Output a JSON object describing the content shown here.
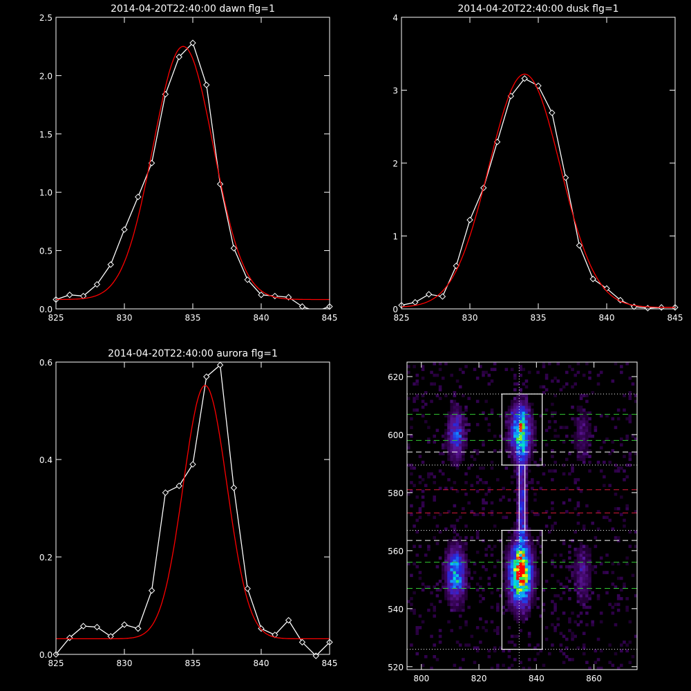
{
  "chart_data": [
    {
      "type": "line",
      "title": "2014-04-20T22:40:00 dawn flg=1",
      "xlim": [
        825,
        845
      ],
      "ylim": [
        0,
        2.5
      ],
      "xticks": [
        "825",
        "830",
        "835",
        "840",
        "845"
      ],
      "yticks": [
        "0.0",
        "0.5",
        "1.0",
        "1.5",
        "2.0",
        "2.5"
      ],
      "series": [
        {
          "color": "#ffffff",
          "markers": true,
          "x": [
            825,
            826,
            827,
            828,
            829,
            830,
            831,
            832,
            833,
            834,
            835,
            836,
            837,
            838,
            839,
            840,
            841,
            842,
            843,
            844,
            845
          ],
          "y": [
            0.08,
            0.12,
            0.11,
            0.21,
            0.38,
            0.68,
            0.96,
            1.25,
            1.84,
            2.16,
            2.28,
            1.92,
            1.07,
            0.52,
            0.25,
            0.12,
            0.11,
            0.1,
            0.02,
            -0.02,
            0.02
          ]
        },
        {
          "color": "#ff0000",
          "markers": false,
          "fit": "gaussian",
          "params": {
            "amp": 2.17,
            "center": 834.3,
            "sigma": 2.2,
            "baseline": 0.08
          }
        }
      ]
    },
    {
      "type": "line",
      "title": "2014-04-20T22:40:00 dusk flg=1",
      "xlim": [
        825,
        845
      ],
      "ylim": [
        0,
        4
      ],
      "xticks": [
        "825",
        "830",
        "835",
        "840",
        "845"
      ],
      "yticks": [
        "0",
        "1",
        "2",
        "3",
        "4"
      ],
      "series": [
        {
          "color": "#ffffff",
          "markers": true,
          "x": [
            825,
            826,
            827,
            828,
            829,
            830,
            831,
            832,
            833,
            834,
            835,
            836,
            837,
            838,
            839,
            840,
            841,
            842,
            843,
            844,
            845
          ],
          "y": [
            0.05,
            0.09,
            0.2,
            0.17,
            0.59,
            1.22,
            1.66,
            2.29,
            2.92,
            3.16,
            3.06,
            2.69,
            1.8,
            0.87,
            0.41,
            0.28,
            0.12,
            0.03,
            0.01,
            0.02,
            0.02
          ]
        },
        {
          "color": "#ff0000",
          "markers": false,
          "fit": "gaussian",
          "params": {
            "amp": 3.2,
            "center": 834.0,
            "sigma": 2.6,
            "baseline": 0.02
          }
        }
      ]
    },
    {
      "type": "line",
      "title": "2014-04-20T22:40:00 aurora flg=1",
      "xlim": [
        825,
        845
      ],
      "ylim": [
        0,
        0.6
      ],
      "xticks": [
        "825",
        "830",
        "835",
        "840",
        "845"
      ],
      "yticks": [
        "0.0",
        "0.2",
        "0.4",
        "0.6"
      ],
      "series": [
        {
          "color": "#ffffff",
          "markers": true,
          "x": [
            825,
            826,
            827,
            828,
            829,
            830,
            831,
            832,
            833,
            834,
            835,
            836,
            837,
            838,
            839,
            840,
            841,
            842,
            843,
            844,
            845
          ],
          "y": [
            0.0,
            0.034,
            0.058,
            0.056,
            0.037,
            0.061,
            0.053,
            0.131,
            0.332,
            0.346,
            0.39,
            0.57,
            0.594,
            0.342,
            0.135,
            0.053,
            0.04,
            0.07,
            0.025,
            -0.003,
            0.025
          ]
        },
        {
          "color": "#ff0000",
          "markers": false,
          "fit": "gaussian",
          "params": {
            "amp": 0.52,
            "center": 835.9,
            "sigma": 1.6,
            "baseline": 0.032
          }
        }
      ]
    },
    {
      "type": "heatmap",
      "title": "",
      "xlim": [
        795,
        875
      ],
      "ylim": [
        519,
        625
      ],
      "xticks": [
        "800",
        "820",
        "840",
        "860"
      ],
      "yticks": [
        "520",
        "540",
        "560",
        "580",
        "600",
        "620"
      ],
      "blobs": [
        {
          "x": 834.5,
          "y": 552,
          "sx": 2.6,
          "sy": 7,
          "amp": 1.0
        },
        {
          "x": 834.5,
          "y": 601,
          "sx": 2.4,
          "sy": 6,
          "amp": 0.72
        },
        {
          "x": 812,
          "y": 552,
          "sx": 2.2,
          "sy": 6,
          "amp": 0.6
        },
        {
          "x": 812,
          "y": 600,
          "sx": 2.0,
          "sy": 6,
          "amp": 0.4
        },
        {
          "x": 856,
          "y": 552,
          "sx": 2.2,
          "sy": 7,
          "amp": 0.2
        },
        {
          "x": 856,
          "y": 600,
          "sx": 2.2,
          "sy": 7,
          "amp": 0.15
        },
        {
          "x": 835,
          "y": 577,
          "sx": 1.2,
          "sy": 14,
          "amp": 0.35
        }
      ],
      "vline": {
        "x": 834,
        "color": "#ffffff",
        "style": "dotted"
      },
      "boxes": [
        {
          "x0": 828,
          "x1": 842,
          "y0": 526,
          "y1": 567,
          "color": "#ffffff"
        },
        {
          "x0": 828,
          "x1": 842,
          "y0": 589.5,
          "y1": 614,
          "color": "#ffffff"
        },
        {
          "x0": 834,
          "x1": 836,
          "y0": 567,
          "y1": 589.5,
          "color": "#ffffff"
        }
      ],
      "hlines": [
        {
          "y": 614,
          "color": "#ffffff",
          "style": "dotted"
        },
        {
          "y": 607,
          "color": "#33cc33",
          "style": "dashed"
        },
        {
          "y": 598,
          "color": "#33cc33",
          "style": "dashed"
        },
        {
          "y": 594,
          "color": "#ffffff",
          "style": "dashed"
        },
        {
          "y": 589.5,
          "color": "#ffffff",
          "style": "dotted"
        },
        {
          "y": 581,
          "color": "#dd1a3a",
          "style": "dashed"
        },
        {
          "y": 573,
          "color": "#dd1a3a",
          "style": "dashed"
        },
        {
          "y": 567,
          "color": "#ffffff",
          "style": "dotted"
        },
        {
          "y": 563.5,
          "color": "#ffffff",
          "style": "dashed"
        },
        {
          "y": 556,
          "color": "#33cc33",
          "style": "dashed"
        },
        {
          "y": 547,
          "color": "#33cc33",
          "style": "dashed"
        },
        {
          "y": 526,
          "color": "#ffffff",
          "style": "dotted"
        }
      ]
    }
  ]
}
